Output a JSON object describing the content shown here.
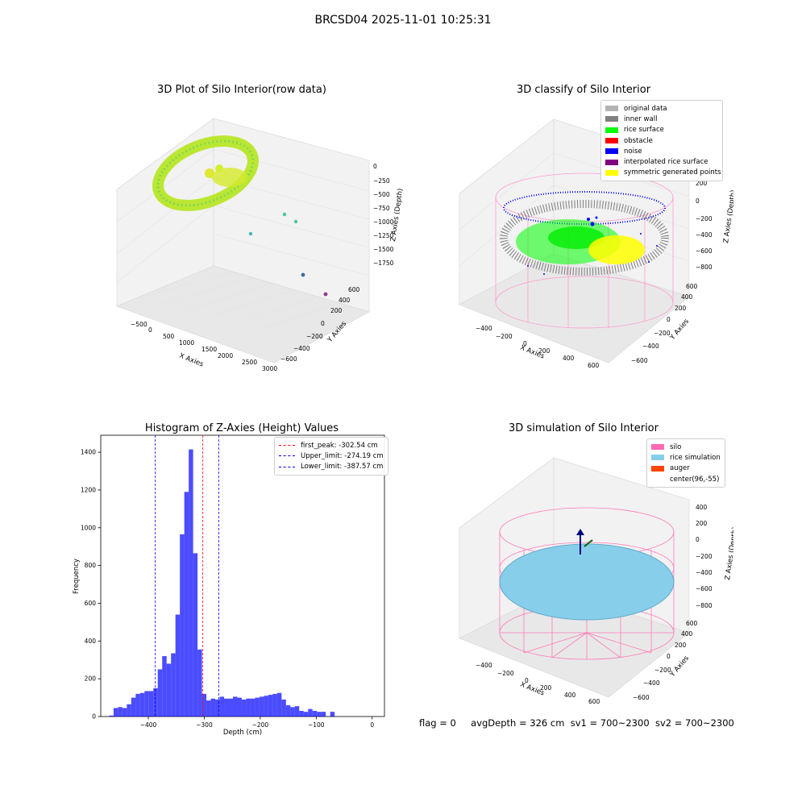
{
  "suptitle": "BRCSD04 2025-11-01 10:25:31",
  "panels": {
    "raw": {
      "title": "3D Plot of Silo Interior(row data)",
      "xlabel": "X Axies",
      "ylabel": "Y Axies",
      "zlabel": "Z Axies (Depth)",
      "xticks": [
        "−500",
        "0",
        "500",
        "1000",
        "1500",
        "2000",
        "2500",
        "3000"
      ],
      "yticks": [
        "−600",
        "−400",
        "−200",
        "0",
        "200",
        "400",
        "600"
      ],
      "zticks": [
        "0",
        "−250",
        "−500",
        "−750",
        "−1000",
        "−1250",
        "−1500",
        "−1750"
      ]
    },
    "classify": {
      "title": "3D classify of Silo Interior",
      "xlabel": "X Axies",
      "ylabel": "Y Axies",
      "zlabel": "Z Axies (Depth)",
      "xticks": [
        "−400",
        "−200",
        "0",
        "200",
        "400",
        "600"
      ],
      "yticks": [
        "−600",
        "−400",
        "−200",
        "0",
        "200",
        "400",
        "600"
      ],
      "zticks": [
        "200",
        "0",
        "−200",
        "−400",
        "−600",
        "−800"
      ],
      "legend": [
        {
          "label": "original data",
          "color": "#b3b3b3"
        },
        {
          "label": "inner wall",
          "color": "#808080"
        },
        {
          "label": "rice surface",
          "color": "#00ff00"
        },
        {
          "label": "obstacle",
          "color": "#ff0000"
        },
        {
          "label": "noise",
          "color": "#0000ff"
        },
        {
          "label": "interpolated rice surface",
          "color": "#800080"
        },
        {
          "label": "symmetric generated points",
          "color": "#ffff00"
        }
      ]
    },
    "simulation": {
      "title": "3D simulation of Silo Interior",
      "xlabel": "X Axies",
      "ylabel": "Y Axies",
      "zlabel": "Z Axies (Depth)",
      "xticks": [
        "−400",
        "−200",
        "0",
        "200",
        "400",
        "600"
      ],
      "yticks": [
        "−600",
        "−400",
        "−200",
        "0",
        "200",
        "400",
        "600"
      ],
      "zticks": [
        "400",
        "200",
        "0",
        "−200",
        "−400",
        "−600",
        "−800"
      ],
      "legend": [
        {
          "label": "silo",
          "color": "#ff69b4"
        },
        {
          "label": "rice simulation",
          "color": "#87ceeb"
        },
        {
          "label": "auger",
          "color": "#ff4500"
        },
        {
          "label": "center(96,-55)",
          "color": "#ffffff"
        }
      ]
    }
  },
  "footer": {
    "flag": "flag = 0",
    "avg": "avgDepth = 326 cm",
    "sv1": "sv1 = 700~2300",
    "sv2": "sv2 = 700~2300"
  },
  "chart_data": [
    {
      "type": "bar",
      "title": "Histogram of Z-Axies (Height) Values",
      "xlabel": "Depth (cm)",
      "ylabel": "Frequency",
      "xlim": [
        -485,
        22
      ],
      "ylim": [
        0,
        1490
      ],
      "xticks": [
        -400,
        -300,
        -200,
        -100,
        0
      ],
      "yticks": [
        0,
        200,
        400,
        600,
        800,
        1000,
        1200,
        1400
      ],
      "bin_start": -470,
      "bin_width": 7.9,
      "values": [
        5,
        45,
        50,
        45,
        65,
        100,
        120,
        125,
        135,
        135,
        150,
        250,
        320,
        280,
        335,
        540,
        965,
        1190,
        1415,
        865,
        355,
        120,
        85,
        95,
        90,
        105,
        95,
        95,
        105,
        100,
        90,
        95,
        95,
        100,
        105,
        110,
        115,
        120,
        125,
        90,
        60,
        50,
        55,
        30,
        25,
        40,
        30,
        25,
        25,
        0,
        25
      ],
      "color": "#0000ff",
      "lines": [
        {
          "label": "first_peak: -302.54 cm",
          "x": -302.54,
          "color": "#ff0000"
        },
        {
          "label": "Upper_limit: -274.19 cm",
          "x": -274.19,
          "color": "#0000ff"
        },
        {
          "label": "Lower_limit: -387.57 cm",
          "x": -387.57,
          "color": "#0000ff"
        }
      ]
    }
  ]
}
